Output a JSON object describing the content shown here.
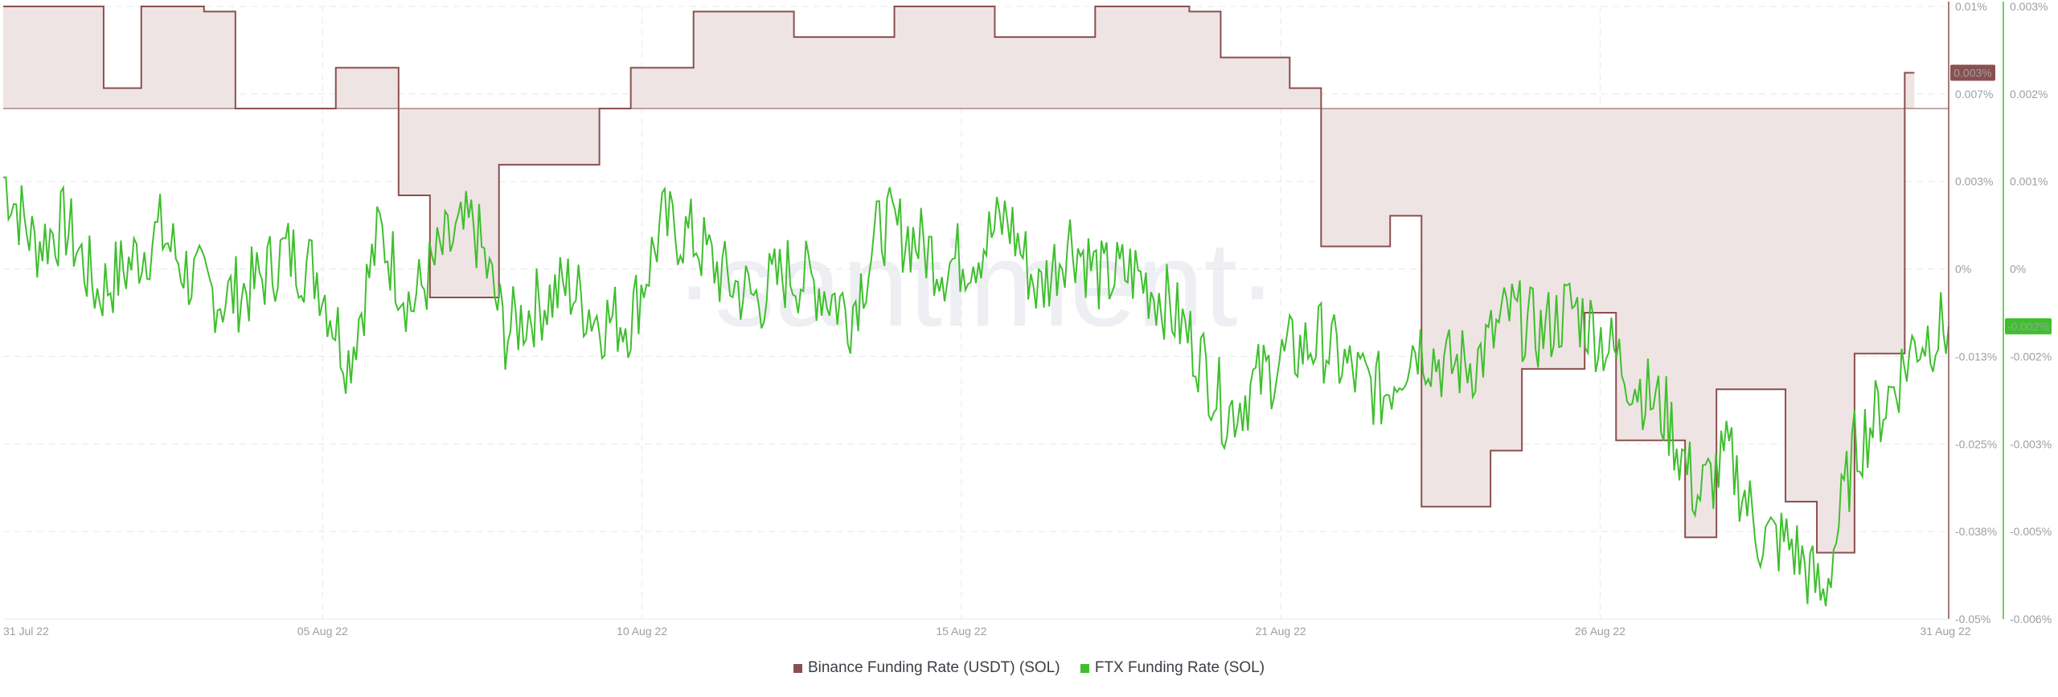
{
  "chart_data": {
    "type": "line",
    "watermark": "·santiment·",
    "x_ticks": [
      "31 Jul 22",
      "05 Aug 22",
      "10 Aug 22",
      "15 Aug 22",
      "21 Aug 22",
      "26 Aug 22",
      "31 Aug 22"
    ],
    "x_range": [
      "31 Jul 22",
      "31 Aug 22"
    ],
    "y_left": {
      "ticks": [
        "0.01%",
        "0.007%",
        "0.003%",
        "0%",
        "-0.013%",
        "-0.025%",
        "-0.038%",
        "-0.05%"
      ],
      "range_pct": [
        -0.05,
        0.01
      ]
    },
    "y_right": {
      "ticks": [
        "0.003%",
        "0.002%",
        "0.001%",
        "0%",
        "-0.002%",
        "-0.003%",
        "-0.005%",
        "-0.006%"
      ],
      "range_pct": [
        -0.006,
        0.003
      ]
    },
    "grid": true,
    "legend_position": "bottom",
    "series": [
      {
        "name": "Binance Funding Rate (USDT) (SOL)",
        "color": "#8b4f4f",
        "fill": "#efe4e4",
        "axis": "left",
        "current_label": "0.003%",
        "step": true,
        "x_day": [
          0,
          1.6,
          2.2,
          3.2,
          3.7,
          4.8,
          5.3,
          6.3,
          6.8,
          7.9,
          8.4,
          9.5,
          10.0,
          11.0,
          11.5,
          12.6,
          13.1,
          14.2,
          14.7,
          15.8,
          16.3,
          17.4,
          17.9,
          18.9,
          19.4,
          20.5,
          21.0,
          22.1,
          22.6,
          23.7,
          24.2,
          25.2,
          25.7,
          26.8,
          27.3,
          28.4,
          28.9,
          29.5,
          30.3
        ],
        "y_pct": [
          0.01,
          0.002,
          0.01,
          0.0095,
          0.0,
          0.0,
          0.004,
          -0.0085,
          -0.0185,
          -0.0055,
          -0.0055,
          0.0,
          0.004,
          0.0095,
          0.0095,
          0.007,
          0.007,
          0.01,
          0.01,
          0.007,
          0.007,
          0.01,
          0.01,
          0.0095,
          0.005,
          0.002,
          -0.0135,
          -0.0105,
          -0.039,
          -0.0335,
          -0.0255,
          -0.02,
          -0.0325,
          -0.042,
          -0.0275,
          -0.0385,
          -0.0435,
          -0.024,
          0.0035
        ]
      },
      {
        "name": "FTX Funding Rate (SOL)",
        "color": "#3fbf2e",
        "axis": "right",
        "current_label": "-0.002%",
        "x_day": [
          0,
          0.5,
          1,
          1.5,
          2,
          2.5,
          3,
          3.5,
          4,
          4.5,
          5,
          5.5,
          6,
          6.5,
          7,
          7.5,
          8,
          8.5,
          9,
          9.5,
          10,
          10.5,
          11,
          11.5,
          12,
          12.5,
          13,
          13.5,
          14,
          14.5,
          15,
          15.5,
          16,
          16.5,
          17,
          17.5,
          18,
          18.5,
          19,
          19.5,
          20,
          20.5,
          21,
          21.5,
          22,
          22.5,
          23,
          23.5,
          24,
          24.5,
          25,
          25.5,
          26,
          26.5,
          27,
          27.5,
          28,
          28.5,
          29,
          29.5,
          30,
          30.5,
          31
        ],
        "y_pct": [
          0.0005,
          -0.0005,
          -0.0002,
          -0.0012,
          -0.0008,
          -0.0003,
          -0.001,
          -0.0013,
          -0.0011,
          -0.0006,
          -0.0009,
          -0.0022,
          -0.0003,
          -0.0014,
          -0.0006,
          -0.0002,
          -0.0018,
          -0.0014,
          -0.0011,
          -0.0016,
          -0.0016,
          -0.0002,
          -0.0004,
          -0.001,
          -0.0013,
          -0.0009,
          -0.0011,
          -0.0015,
          -0.0002,
          -0.0004,
          -0.0008,
          -0.0006,
          -0.0001,
          -0.0012,
          -0.0004,
          -0.001,
          -0.0009,
          -0.0013,
          -0.002,
          -0.003,
          -0.0025,
          -0.0021,
          -0.0019,
          -0.0024,
          -0.0027,
          -0.0019,
          -0.0023,
          -0.0022,
          -0.0015,
          -0.0018,
          -0.0014,
          -0.0019,
          -0.0025,
          -0.003,
          -0.0042,
          -0.0036,
          -0.0048,
          -0.0049,
          -0.0057,
          -0.0035,
          -0.0028,
          -0.0019,
          -0.0017
        ]
      }
    ]
  },
  "legend": {
    "binance_label": "Binance Funding Rate (USDT) (SOL)",
    "ftx_label": "FTX Funding Rate (SOL)"
  }
}
